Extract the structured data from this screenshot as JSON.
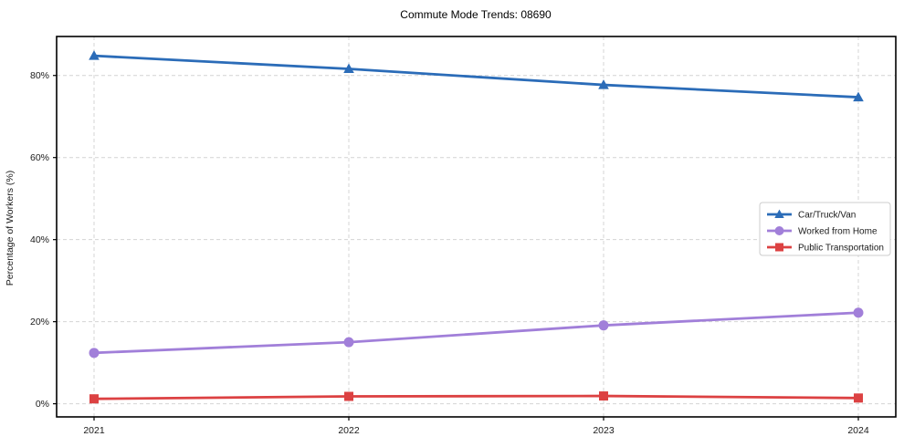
{
  "chart_data": {
    "type": "line",
    "title": "Commute Mode Trends: 08690",
    "xlabel": "",
    "ylabel": "Percentage of Workers (%)",
    "x": [
      2021,
      2022,
      2023,
      2024
    ],
    "x_tick_labels": [
      "2021",
      "2022",
      "2023",
      "2024"
    ],
    "y_ticks": [
      0,
      20,
      40,
      60,
      80
    ],
    "y_tick_labels": [
      "0%",
      "20%",
      "40%",
      "60%",
      "80%"
    ],
    "ylim": [
      -3.2,
      89.5
    ],
    "grid": true,
    "grid_style": "dashed",
    "legend_position": "center-right",
    "series": [
      {
        "name": "Car/Truck/Van",
        "color": "#2b6cb8",
        "marker": "triangle",
        "values": [
          84.8,
          81.6,
          77.7,
          74.7
        ]
      },
      {
        "name": "Worked from Home",
        "color": "#a17fd9",
        "marker": "circle",
        "values": [
          12.4,
          15.0,
          19.1,
          22.2
        ]
      },
      {
        "name": "Public Transportation",
        "color": "#dc4142",
        "marker": "square",
        "values": [
          1.2,
          1.8,
          1.9,
          1.4
        ]
      }
    ],
    "colors": {
      "grid": "#d4d4d4",
      "spine": "#000000",
      "legend_border": "#cccccc",
      "legend_background": "#ffffff"
    }
  }
}
